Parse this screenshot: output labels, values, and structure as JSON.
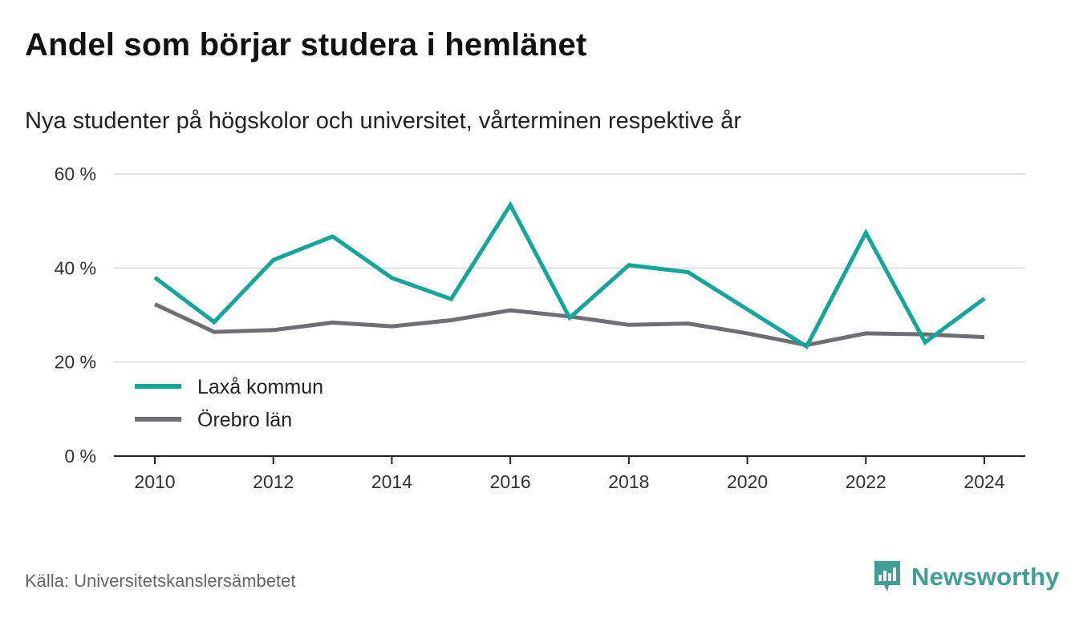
{
  "title": "Andel som börjar studera i hemlänet",
  "subtitle": "Nya studenter på högskolor och universitet, vårterminen respektive år",
  "source": "Källa: Universitetskanslersämbetet",
  "brand": {
    "name": "Newsworthy",
    "icon": "newsworthy-logo-icon",
    "color": "#3f9f94"
  },
  "chart_data": {
    "type": "line",
    "x": [
      2010,
      2011,
      2012,
      2013,
      2014,
      2015,
      2016,
      2017,
      2018,
      2019,
      2020,
      2021,
      2022,
      2023,
      2024
    ],
    "series": [
      {
        "name": "Laxå kommun",
        "color": "#13a69a",
        "values": [
          38.0,
          28.5,
          41.7,
          46.7,
          37.9,
          33.4,
          53.4,
          29.4,
          40.6,
          39.1,
          31.2,
          23.3,
          47.5,
          24.2,
          33.5
        ]
      },
      {
        "name": "Örebro län",
        "color": "#6e6e73",
        "values": [
          32.3,
          26.4,
          26.8,
          28.4,
          27.6,
          28.9,
          31.0,
          29.7,
          27.9,
          28.2,
          26.1,
          23.6,
          26.1,
          25.9,
          25.3
        ]
      }
    ],
    "ylim": [
      0,
      60
    ],
    "yticks": [
      0,
      20,
      40,
      60
    ],
    "ytick_labels": [
      "0 %",
      "20 %",
      "40 %",
      "60 %"
    ],
    "xticks": [
      2010,
      2012,
      2014,
      2016,
      2018,
      2020,
      2022,
      2024
    ],
    "xtick_labels": [
      "2010",
      "2012",
      "2014",
      "2016",
      "2018",
      "2020",
      "2022",
      "2024"
    ],
    "grid": true,
    "legend_position": "bottom-left",
    "xlabel": "",
    "ylabel": ""
  }
}
